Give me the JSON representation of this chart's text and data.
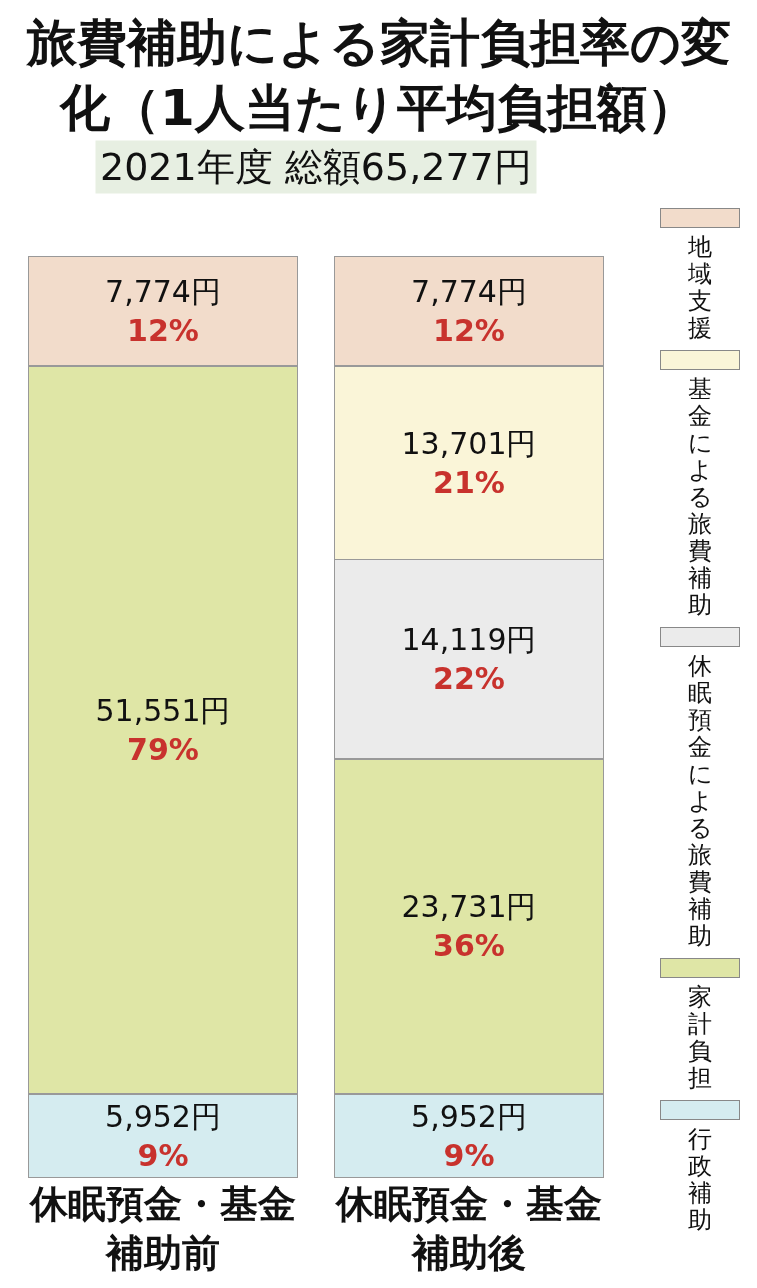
{
  "chart_data": {
    "type": "bar",
    "title": "旅費補助による家計負担率の変化（1人当たり平均負担額）",
    "subtitle": "2021年度 総額65,277円",
    "categories": [
      "休眠預金・基金補助前",
      "休眠預金・基金補助後"
    ],
    "stacked": true,
    "legend": "right",
    "series": [
      {
        "name": "行政補助",
        "color": "#d5ecf0",
        "values": [
          5952,
          5952
        ],
        "value_labels": [
          "5,952円\n9%",
          "5,952円\n9%"
        ]
      },
      {
        "name": "家計負担",
        "color": "#dfe6a6",
        "values": [
          51551,
          23731
        ],
        "value_labels": [
          "51,551円\n79%",
          "23,731円\n36%"
        ]
      },
      {
        "name": "休眠預金による旅費補助",
        "color": "#ebebeb",
        "values": [
          null,
          14119
        ],
        "value_labels": [
          null,
          "14,119円\n22%"
        ]
      },
      {
        "name": "基金による旅費補助",
        "color": "#faf5d8",
        "values": [
          null,
          13701
        ],
        "value_labels": [
          null,
          "13,701円\n21%"
        ]
      },
      {
        "name": "地域支援",
        "color": "#f2dccb",
        "values": [
          7774,
          7774
        ],
        "value_labels": [
          "7,774円\n12%",
          "7,774円\n12%"
        ]
      }
    ]
  }
}
